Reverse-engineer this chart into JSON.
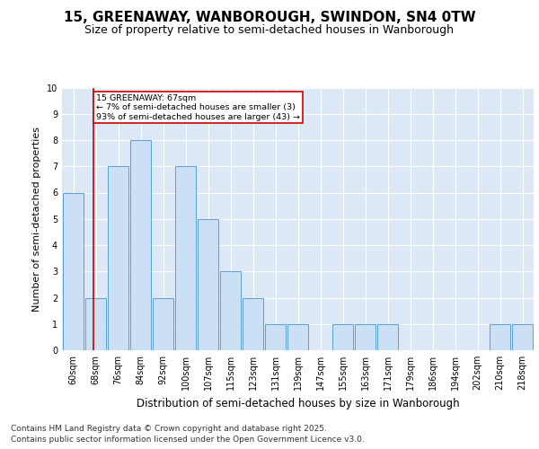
{
  "title": "15, GREENAWAY, WANBOROUGH, SWINDON, SN4 0TW",
  "subtitle": "Size of property relative to semi-detached houses in Wanborough",
  "xlabel": "Distribution of semi-detached houses by size in Wanborough",
  "ylabel": "Number of semi-detached properties",
  "categories": [
    "60sqm",
    "68sqm",
    "76sqm",
    "84sqm",
    "92sqm",
    "100sqm",
    "107sqm",
    "115sqm",
    "123sqm",
    "131sqm",
    "139sqm",
    "147sqm",
    "155sqm",
    "163sqm",
    "171sqm",
    "179sqm",
    "186sqm",
    "194sqm",
    "202sqm",
    "210sqm",
    "218sqm"
  ],
  "values": [
    6,
    2,
    7,
    8,
    2,
    7,
    5,
    3,
    2,
    1,
    1,
    0,
    1,
    1,
    1,
    0,
    0,
    0,
    0,
    1,
    1
  ],
  "bar_color": "#cce0f5",
  "bar_edge_color": "#5a9fd4",
  "vline_color": "#cc0000",
  "annotation_text": "15 GREENAWAY: 67sqm\n← 7% of semi-detached houses are smaller (3)\n93% of semi-detached houses are larger (43) →",
  "annotation_box_color": "#ffffff",
  "annotation_box_edge": "#cc0000",
  "ylim": [
    0,
    10
  ],
  "yticks": [
    0,
    1,
    2,
    3,
    4,
    5,
    6,
    7,
    8,
    9,
    10
  ],
  "background_color": "#dce8f5",
  "footer1": "Contains HM Land Registry data © Crown copyright and database right 2025.",
  "footer2": "Contains public sector information licensed under the Open Government Licence v3.0.",
  "title_fontsize": 11,
  "subtitle_fontsize": 9,
  "xlabel_fontsize": 8.5,
  "ylabel_fontsize": 8,
  "tick_fontsize": 7,
  "footer_fontsize": 6.5
}
